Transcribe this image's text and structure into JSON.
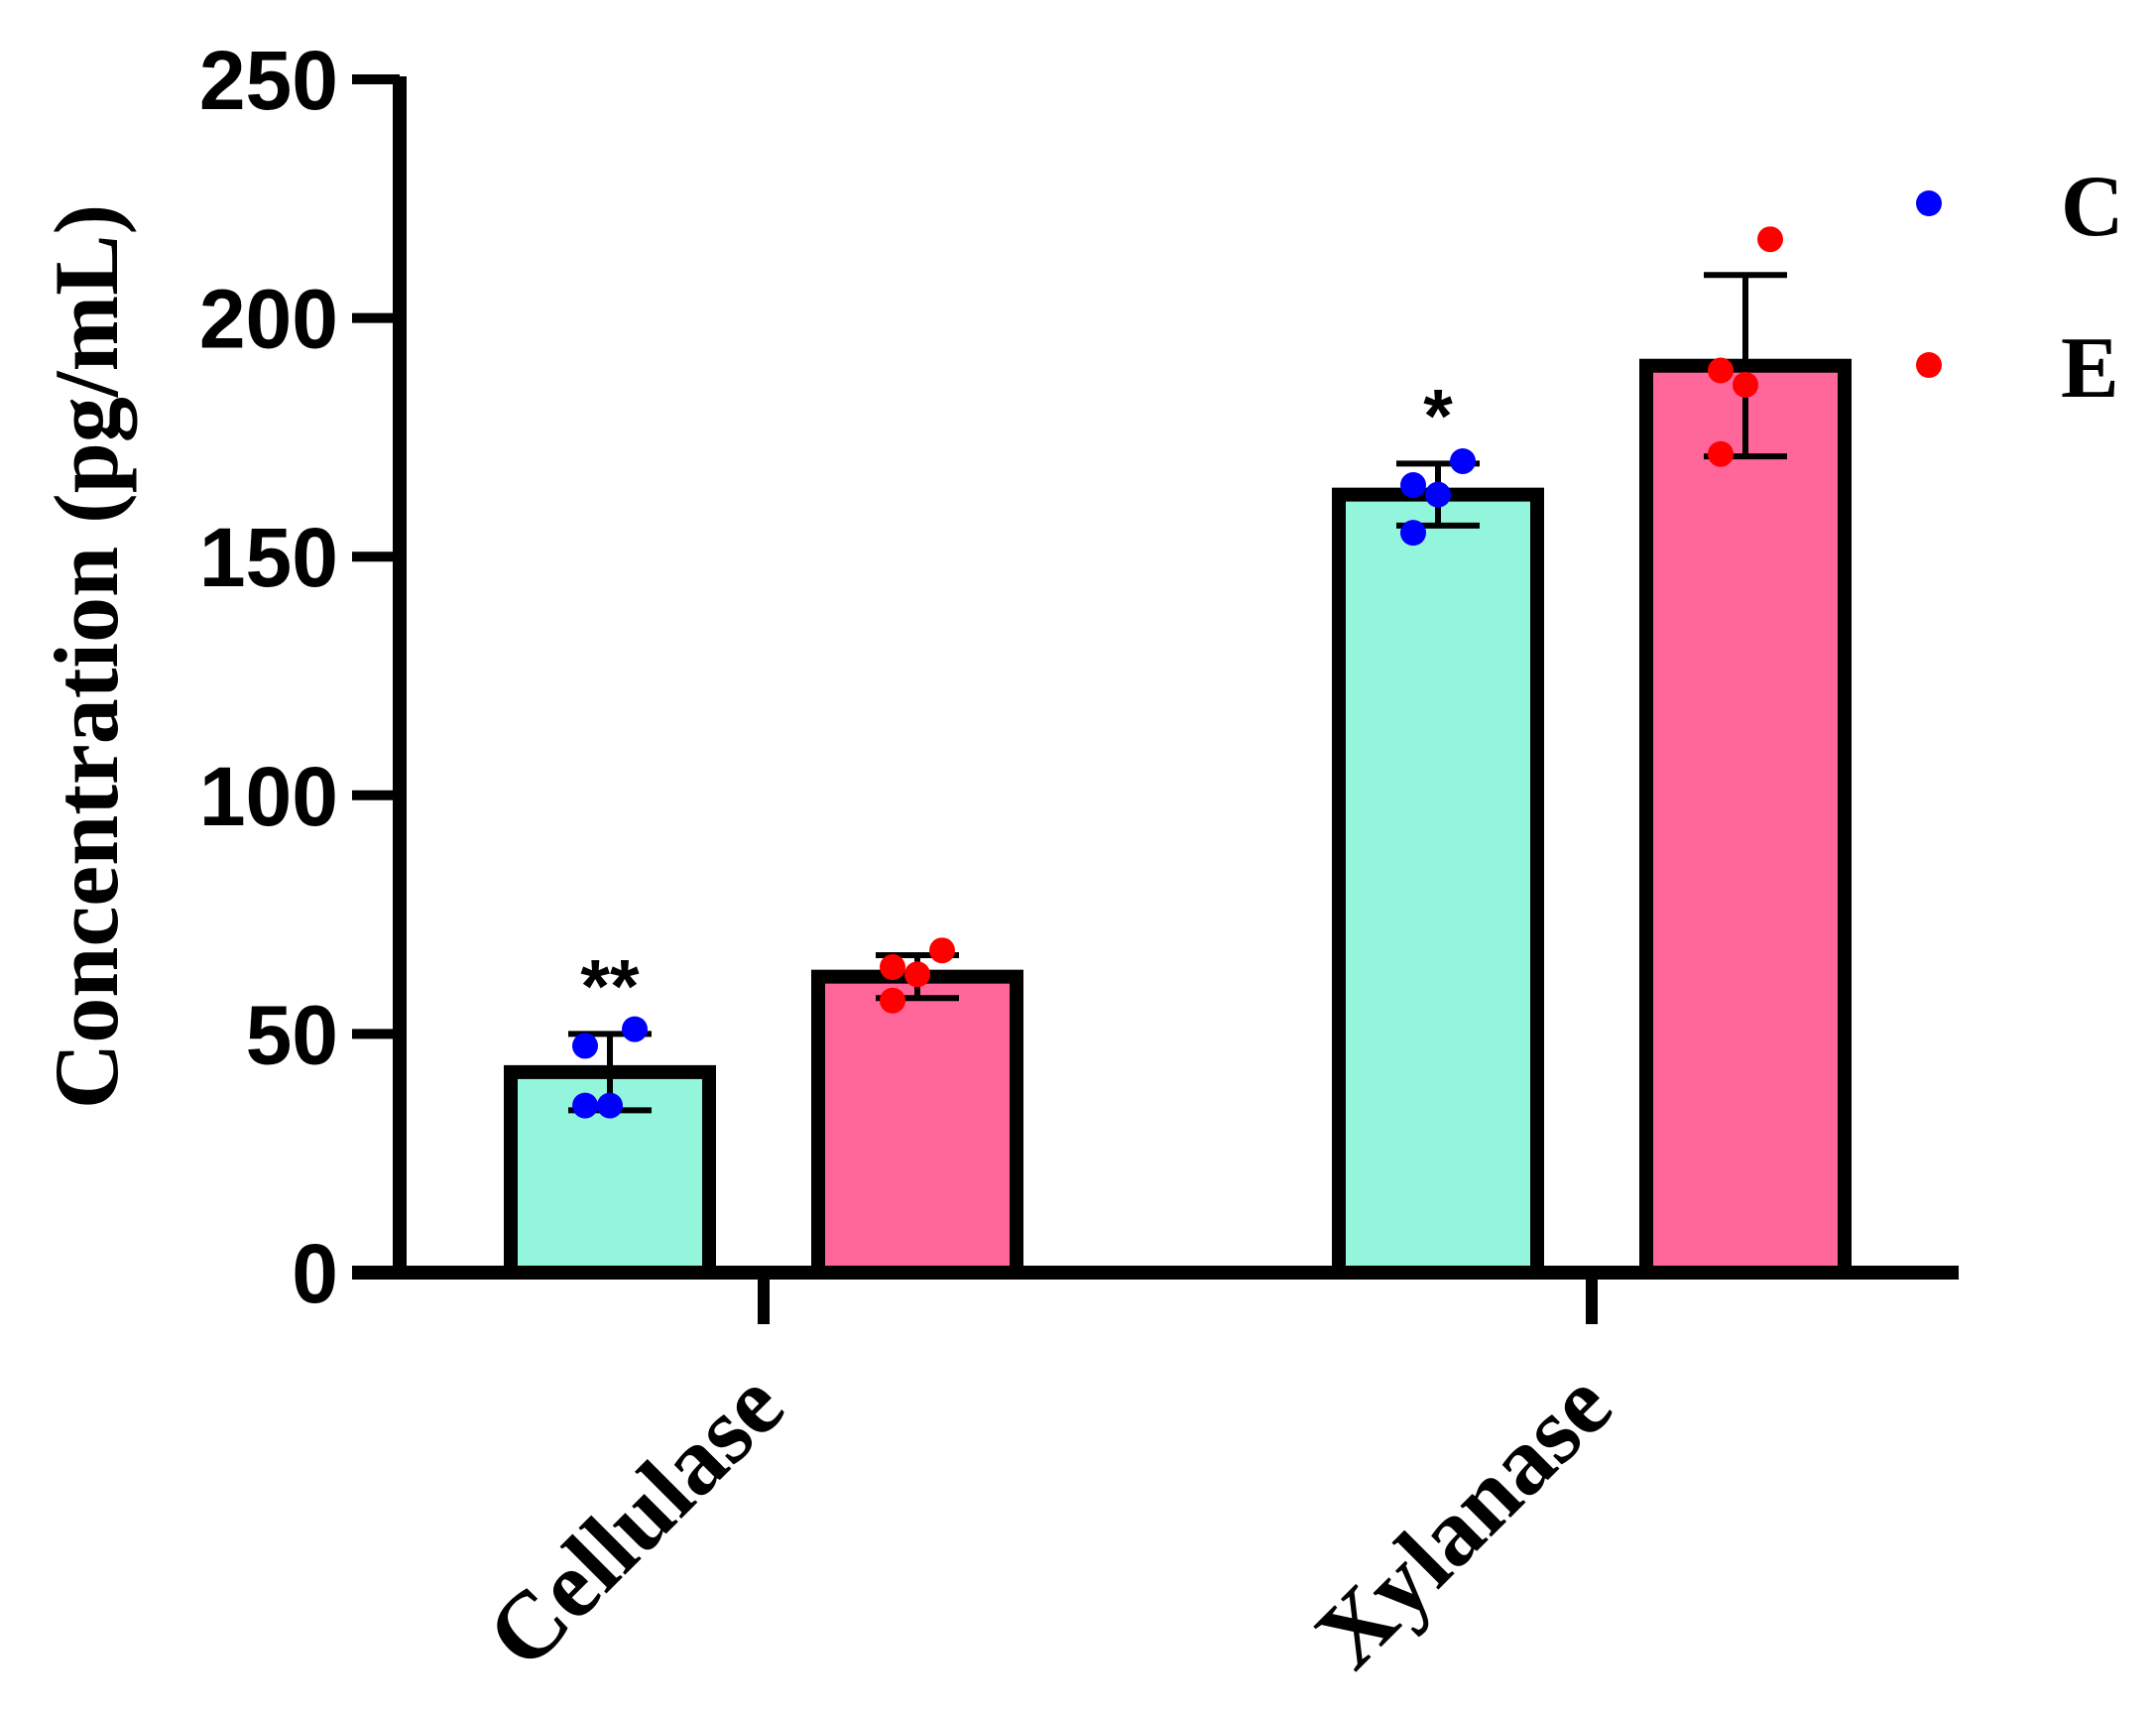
{
  "chart_data": {
    "type": "bar",
    "title": "",
    "xlabel": "",
    "ylabel": "Concentration (pg/mL)",
    "ylim": [
      0,
      250
    ],
    "yticks": [
      0,
      50,
      100,
      150,
      200,
      250
    ],
    "grid": false,
    "legend_position": "top-right",
    "categories": [
      "Cellulase",
      "Xylanase"
    ],
    "series": [
      {
        "name": "C",
        "bar_color": "#93F5DC",
        "point_color": "#0000FF",
        "values": [
          42,
          163
        ],
        "errors": [
          8,
          6.5
        ],
        "points": [
          [
            47.5,
            51,
            35,
            35
          ],
          [
            165,
            170,
            163,
            155
          ]
        ],
        "significance": [
          "**",
          "*"
        ]
      },
      {
        "name": "E",
        "bar_color": "#FF6699",
        "point_color": "#FF0000",
        "values": [
          62,
          190
        ],
        "errors": [
          4.5,
          19
        ],
        "points": [
          [
            64,
            67.5,
            62.5,
            57
          ],
          [
            189,
            216.5,
            186,
            171.5
          ]
        ],
        "significance": [
          "",
          ""
        ]
      }
    ]
  }
}
